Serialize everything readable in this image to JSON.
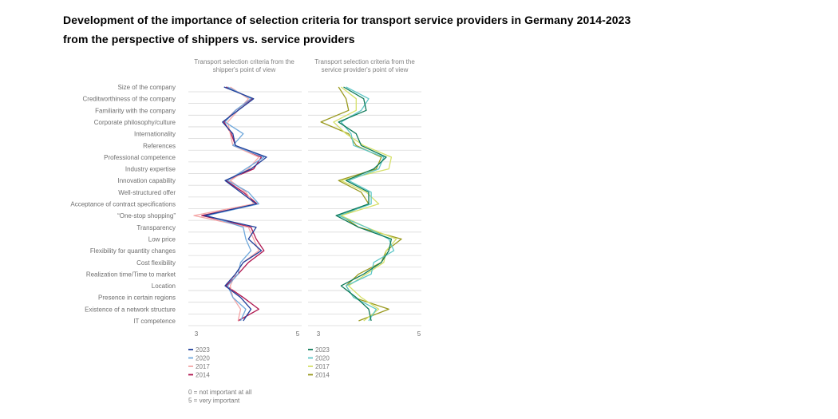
{
  "title": {
    "line1": "Development of the importance of selection criteria for transport service providers in Germany 2014-2023",
    "line2": "from the perspective of shippers vs. service providers"
  },
  "scale_note": [
    "0 = not important at all",
    "5 = very important"
  ],
  "chart_data": [
    {
      "type": "line",
      "orientation": "vertical-profile",
      "title": "Transport selection criteria from the shipper's point of view",
      "title_lines": [
        "Transport selection criteria from the",
        "shipper's point of view"
      ],
      "categories": [
        "Size of the company",
        "Creditworthiness of the company",
        "Familiarity with the company",
        "Corporate philosophy/culture",
        "Internationality",
        "References",
        "Professional competence",
        "Industry expertise",
        "Innovation capability",
        "Well-structured offer",
        "Acceptance of contract specifications",
        "“One-stop shopping”",
        "Transparency",
        "Low price",
        "Flexibility for quantity changes",
        "Cost flexibility",
        "Realization time/Time to market",
        "Location",
        "Presence in certain regions",
        "Existence of a network structure",
        "IT competence"
      ],
      "value_axis": {
        "min": 3,
        "max": 5,
        "ticks": [
          3,
          5
        ]
      },
      "grid": true,
      "legend_position": "bottom",
      "series": [
        {
          "name": "2023",
          "color": "#1f3f9a",
          "values": [
            3.58,
            4.15,
            3.85,
            3.55,
            3.75,
            3.8,
            4.4,
            4.1,
            3.6,
            3.9,
            4.2,
            3.2,
            4.2,
            4.05,
            4.3,
            3.95,
            3.8,
            3.6,
            3.9,
            4.1,
            3.95
          ]
        },
        {
          "name": "2020",
          "color": "#6fa8dc",
          "values": [
            3.65,
            4.1,
            3.8,
            3.6,
            3.95,
            3.75,
            4.35,
            4.0,
            3.65,
            4.05,
            4.25,
            3.25,
            3.95,
            4.0,
            4.1,
            3.9,
            3.85,
            3.65,
            3.75,
            4.0,
            3.9
          ]
        },
        {
          "name": "2017",
          "color": "#f4a6a6",
          "values": [
            3.7,
            4.05,
            3.85,
            3.65,
            3.7,
            3.75,
            4.25,
            4.05,
            3.7,
            4.0,
            4.15,
            3.0,
            4.05,
            4.15,
            4.25,
            3.95,
            3.8,
            3.7,
            3.75,
            3.9,
            3.85
          ]
        },
        {
          "name": "2014",
          "color": "#b0174f",
          "values": [
            3.62,
            4.12,
            3.8,
            3.58,
            3.72,
            3.8,
            4.3,
            4.15,
            3.62,
            3.95,
            4.22,
            3.15,
            4.1,
            4.2,
            4.35,
            4.05,
            3.85,
            3.62,
            3.95,
            4.25,
            3.85
          ]
        }
      ]
    },
    {
      "type": "line",
      "orientation": "vertical-profile",
      "title": "Transport selection criteria from the service provider's point of view",
      "title_lines": [
        "Transport selection criteria from the",
        "service provider's point of view"
      ],
      "categories": [
        "Size of the company",
        "Creditworthiness of the company",
        "Familiarity with the company",
        "Corporate philosophy/culture",
        "Internationality",
        "References",
        "Professional competence",
        "Industry expertise",
        "Innovation capability",
        "Well-structured offer",
        "Acceptance of contract specifications",
        "“One-stop shopping”",
        "Transparency",
        "Low price",
        "Flexibility for quantity changes",
        "Cost flexibility",
        "Realization time/Time to market",
        "Location",
        "Presence in certain regions",
        "Existence of a network structure",
        "IT competence"
      ],
      "value_axis": {
        "min": 3,
        "max": 5,
        "ticks": [
          3,
          5
        ]
      },
      "grid": true,
      "legend_position": "bottom",
      "series": [
        {
          "name": "2023",
          "color": "#0f7a5a",
          "values": [
            3.5,
            3.9,
            3.95,
            3.4,
            3.75,
            3.85,
            4.35,
            4.1,
            3.55,
            4.0,
            4.0,
            3.35,
            3.8,
            4.45,
            4.4,
            4.25,
            3.9,
            3.45,
            3.75,
            4.0,
            4.05
          ]
        },
        {
          "name": "2020",
          "color": "#5fc7c7",
          "values": [
            3.55,
            4.0,
            3.85,
            3.45,
            3.65,
            3.7,
            4.3,
            4.2,
            3.6,
            4.05,
            4.05,
            3.4,
            3.95,
            4.4,
            4.5,
            4.1,
            4.05,
            3.55,
            3.7,
            4.15,
            4.0
          ]
        },
        {
          "name": "2017",
          "color": "#d6e06a",
          "values": [
            3.45,
            3.75,
            3.75,
            3.3,
            3.55,
            3.9,
            4.45,
            4.4,
            3.45,
            3.95,
            4.2,
            3.45,
            3.95,
            4.55,
            4.35,
            4.3,
            3.95,
            3.6,
            3.85,
            4.2,
            3.9
          ]
        },
        {
          "name": "2014",
          "color": "#9a9a1f",
          "values": [
            3.4,
            3.55,
            3.6,
            3.05,
            3.6,
            3.75,
            4.25,
            4.15,
            3.4,
            3.85,
            4.0,
            3.45,
            3.8,
            4.65,
            4.35,
            4.25,
            3.8,
            3.55,
            3.7,
            4.4,
            3.8
          ]
        }
      ]
    }
  ]
}
